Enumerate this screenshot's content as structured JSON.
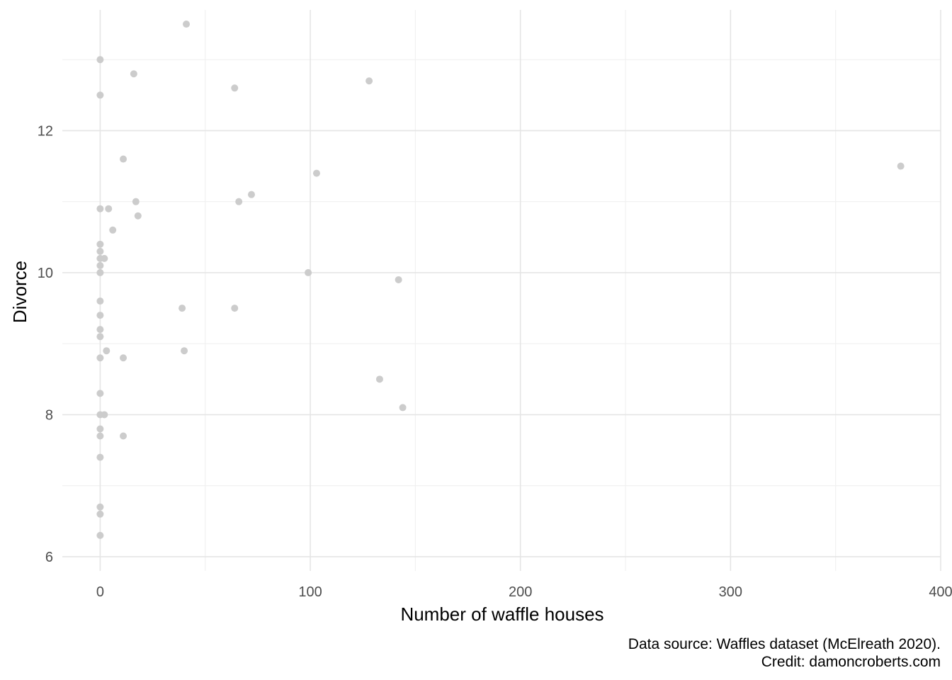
{
  "chart_data": {
    "type": "scatter",
    "xlabel": "Number of waffle houses",
    "ylabel": "Divorce",
    "caption_lines": [
      "Data source: Waffles dataset (McElreath 2020).",
      "Credit: damoncroberts.com"
    ],
    "xlim": [
      -18,
      400
    ],
    "ylim": [
      5.8,
      13.7
    ],
    "x_ticks": [
      0,
      100,
      200,
      300,
      400
    ],
    "x_tick_labels": [
      "0",
      "100",
      "200",
      "300",
      "400"
    ],
    "y_ticks": [
      6,
      8,
      10,
      12
    ],
    "y_tick_labels": [
      "6",
      "8",
      "10",
      "12"
    ],
    "grid": true,
    "point_color": "#cccccc",
    "x": [
      41,
      0,
      16,
      64,
      128,
      0,
      11,
      381,
      103,
      17,
      72,
      66,
      0,
      4,
      18,
      6,
      0,
      0,
      0,
      2,
      0,
      0,
      99,
      142,
      0,
      39,
      64,
      0,
      0,
      0,
      40,
      3,
      11,
      0,
      133,
      0,
      2,
      144,
      0,
      0,
      11,
      0,
      0,
      0,
      0,
      0
    ],
    "y": [
      13.5,
      13.0,
      12.8,
      12.6,
      12.7,
      12.5,
      11.6,
      11.5,
      11.4,
      11.0,
      11.1,
      11.0,
      10.9,
      10.9,
      10.8,
      10.6,
      10.4,
      10.3,
      10.2,
      10.2,
      10.1,
      10.0,
      10.0,
      9.9,
      9.6,
      9.5,
      9.5,
      9.4,
      9.2,
      9.1,
      8.9,
      8.9,
      8.8,
      8.8,
      8.5,
      8.3,
      8.0,
      8.1,
      8.0,
      7.8,
      7.7,
      7.7,
      7.4,
      6.7,
      6.6,
      6.3
    ]
  }
}
